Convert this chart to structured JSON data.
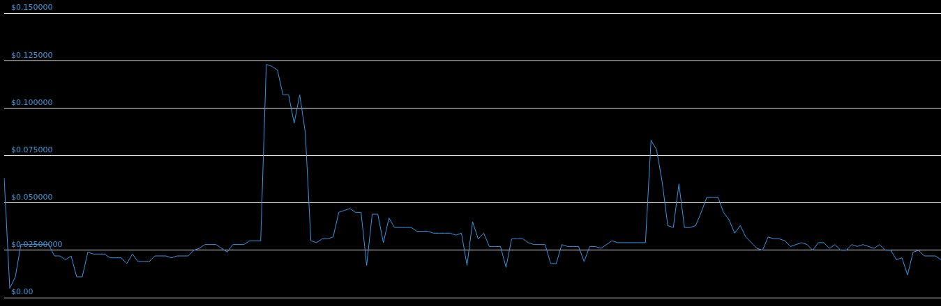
{
  "chart_data": {
    "type": "line",
    "categories": [
      null,
      null,
      null,
      null,
      null,
      null,
      null,
      null,
      null,
      null,
      null,
      null,
      null,
      null,
      null,
      null,
      null,
      null,
      null,
      null,
      null,
      null,
      null,
      null,
      null,
      null,
      null,
      null,
      null,
      null,
      null,
      null,
      null,
      null,
      null,
      null,
      null,
      null,
      null,
      null,
      null,
      null,
      null,
      null,
      null,
      null,
      null,
      null,
      null,
      null,
      null,
      null,
      null,
      null,
      null,
      null,
      null,
      null,
      null,
      null,
      null,
      null,
      null,
      null,
      null,
      null,
      null,
      null,
      null,
      null,
      null,
      null,
      null,
      null,
      null,
      null,
      null,
      null,
      null,
      null,
      null,
      null,
      null,
      null,
      null,
      null,
      null,
      null,
      null,
      null,
      null,
      null,
      null,
      null,
      null,
      null,
      null,
      null,
      null,
      null,
      null,
      null,
      null,
      null,
      null,
      null,
      null,
      null,
      null,
      null,
      null,
      null,
      null,
      null,
      null,
      null,
      null,
      null,
      null,
      null,
      null,
      null,
      null,
      null,
      null,
      null,
      null,
      null,
      null,
      null,
      null,
      null,
      null,
      null,
      null,
      null,
      null,
      null,
      null,
      null,
      null,
      null,
      null,
      null,
      null,
      null,
      null,
      null,
      null,
      null,
      null,
      null,
      null,
      null,
      null,
      null,
      null,
      null,
      null,
      null,
      null,
      null,
      null,
      null,
      null,
      null,
      null,
      null,
      null
    ],
    "series": [
      {
        "color": "#3399e6",
        "values": [
          0.063,
          0.005,
          0.011,
          0.028,
          0.028,
          0.028,
          0.028,
          0.028,
          0.028,
          0.022,
          0.022,
          0.02,
          0.022,
          0.011,
          0.011,
          0.024,
          0.023,
          0.023,
          0.023,
          0.021,
          0.021,
          0.021,
          0.018,
          0.023,
          0.019,
          0.019,
          0.019,
          0.022,
          0.022,
          0.022,
          0.021,
          0.022,
          0.022,
          0.022,
          0.025,
          0.026,
          0.028,
          0.028,
          0.028,
          0.026,
          0.024,
          0.028,
          0.028,
          0.028,
          0.03,
          0.03,
          0.03,
          0.123,
          0.122,
          0.12,
          0.107,
          0.107,
          0.092,
          0.107,
          0.087,
          0.03,
          0.029,
          0.031,
          0.031,
          0.032,
          0.045,
          0.046,
          0.047,
          0.045,
          0.045,
          0.017,
          0.044,
          0.044,
          0.029,
          0.042,
          0.037,
          0.037,
          0.037,
          0.037,
          0.035,
          0.035,
          0.035,
          0.034,
          0.034,
          0.034,
          0.034,
          0.033,
          0.034,
          0.017,
          0.04,
          0.031,
          0.034,
          0.027,
          0.027,
          0.027,
          0.016,
          0.031,
          0.031,
          0.031,
          0.029,
          0.028,
          0.028,
          0.028,
          0.018,
          0.018,
          0.028,
          0.027,
          0.027,
          0.027,
          0.019,
          0.027,
          0.027,
          0.026,
          0.028,
          0.03,
          0.029,
          0.029,
          0.029,
          0.029,
          0.029,
          0.029,
          0.083,
          0.078,
          0.061,
          0.038,
          0.037,
          0.06,
          0.037,
          0.037,
          0.038,
          0.045,
          0.053,
          0.053,
          0.053,
          0.045,
          0.041,
          0.034,
          0.038,
          0.032,
          0.029,
          0.026,
          0.025,
          0.032,
          0.031,
          0.031,
          0.03,
          0.027,
          0.028,
          0.029,
          0.028,
          0.025,
          0.029,
          0.029,
          0.026,
          0.028,
          0.025,
          0.025,
          0.028,
          0.027,
          0.028,
          0.027,
          0.026,
          0.028,
          0.025,
          0.025,
          0.02,
          0.021,
          0.012,
          0.024,
          0.025,
          0.022,
          0.022,
          0.022,
          0.02
        ]
      }
    ],
    "ylim": [
      0,
      0.15
    ],
    "yticks": [
      {
        "value": 0,
        "label": "$0.00"
      },
      {
        "value": 0.025,
        "label": "$0.02500000"
      },
      {
        "value": 0.05,
        "label": "$0.050000"
      },
      {
        "value": 0.075,
        "label": "$0.075000"
      },
      {
        "value": 0.1,
        "label": "$0.100000"
      },
      {
        "value": 0.125,
        "label": "$0.125000"
      },
      {
        "value": 0.15,
        "label": "$0.150000"
      }
    ],
    "grid": "y",
    "tick_labels": "y",
    "marker": "none"
  }
}
